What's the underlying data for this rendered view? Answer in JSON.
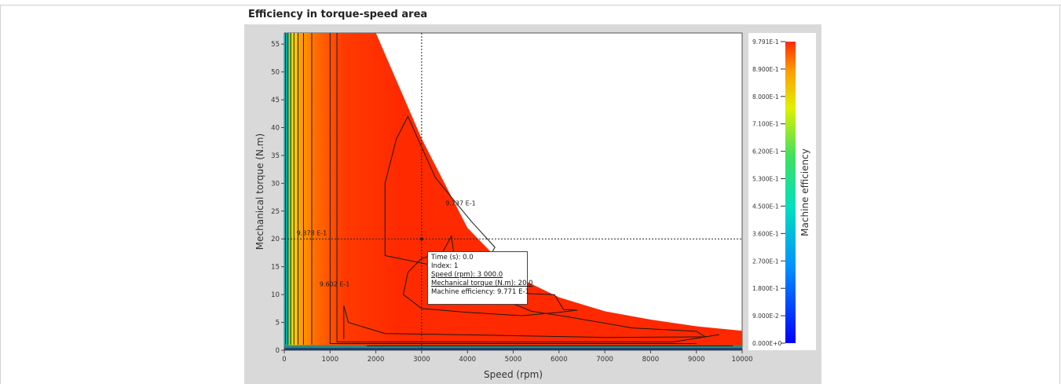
{
  "title": "Efficiency in torque-speed area",
  "tooltip": {
    "time": "Time (s): 0.0",
    "index": "Index: 1",
    "speed": "Speed (rpm): 3 000.0",
    "torque": "Mechanical torque (N.m): 20.0",
    "efficiency": "Machine efficiency: 9.771 E-1"
  },
  "chart_data": {
    "type": "heatmap",
    "xlabel": "Speed (rpm)",
    "ylabel": "Mechanical torque (N.m)",
    "xlim": [
      0,
      10000
    ],
    "ylim": [
      0,
      57
    ],
    "x_ticks": [
      "0",
      "1000",
      "2000",
      "3000",
      "4000",
      "5000",
      "6000",
      "7000",
      "8000",
      "9000",
      "10000"
    ],
    "y_ticks": [
      "0",
      "5",
      "10",
      "15",
      "20",
      "25",
      "30",
      "35",
      "40",
      "45",
      "50",
      "55"
    ],
    "cursor": {
      "x": 3000,
      "y": 20
    },
    "colorbar": {
      "label": "Machine efficiency",
      "min": 0,
      "max": 0.9791,
      "ticks": [
        "9.791E-1",
        "8.900E-1",
        "8.000E-1",
        "7.100E-1",
        "6.200E-1",
        "5.300E-1",
        "4.500E-1",
        "3.600E-1",
        "2.700E-1",
        "1.800E-1",
        "9.000E-2",
        "0.000E+0"
      ],
      "colors": {
        "low": "#0000ff",
        "mid": "#00e0c0",
        "high": "#ff2a00"
      }
    },
    "contour_labels": [
      {
        "text": "9.378 E-1",
        "x": 600,
        "y": 20.7
      },
      {
        "text": "9.602 E-1",
        "x": 1100,
        "y": 11.5
      },
      {
        "text": "9.737 E-1",
        "x": 3850,
        "y": 26
      }
    ],
    "torque_envelope": {
      "speed": [
        0,
        2000,
        3000,
        4000,
        5000,
        6000,
        7000,
        8000,
        9000,
        10000
      ],
      "torque": [
        57,
        57,
        38,
        22,
        13.5,
        9.5,
        7,
        5.5,
        4.3,
        3.5
      ]
    }
  }
}
